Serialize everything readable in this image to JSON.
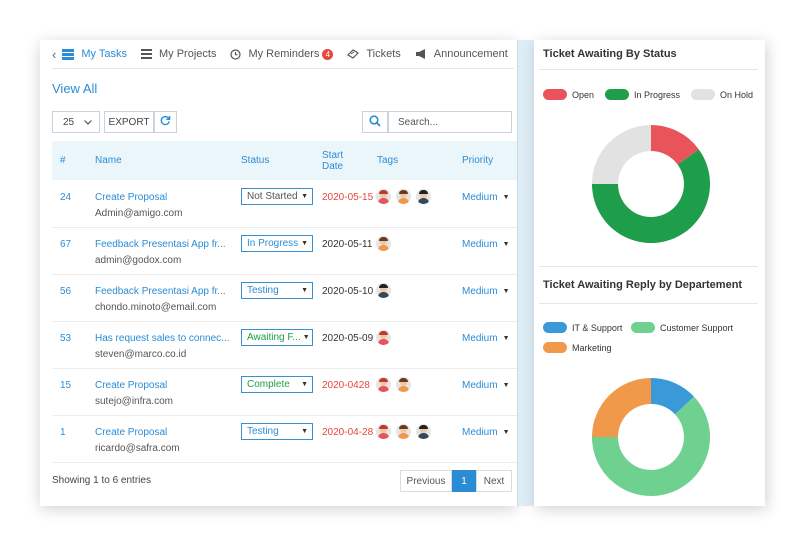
{
  "tabs": [
    {
      "label": "My Tasks",
      "icon": "tasks-icon",
      "active": true
    },
    {
      "label": "My Projects",
      "icon": "projects-icon"
    },
    {
      "label": "My Reminders",
      "icon": "clock-icon",
      "badge": "4"
    },
    {
      "label": "Tickets",
      "icon": "ticket-icon"
    },
    {
      "label": "Announcement",
      "icon": "megaphone-icon"
    }
  ],
  "view_all": "View All",
  "controls": {
    "page_length": "25",
    "export_label": "EXPORT",
    "search_placeholder": "Search..."
  },
  "table": {
    "headers": {
      "num": "#",
      "name": "Name",
      "status": "Status",
      "start_date": "Start Date",
      "tags": "Tags",
      "priority": "Priority"
    },
    "rows": [
      {
        "num": "24",
        "name": "Create Proposal",
        "email": "Admin@amigo.com",
        "status": "Not Started",
        "status_color": "#555555",
        "date": "2020-05-15",
        "date_red": true,
        "tags": [
          "red",
          "orange",
          "dark"
        ],
        "priority": "Medium"
      },
      {
        "num": "67",
        "name": "Feedback Presentasi  App fr...",
        "email": "admin@godox.com",
        "status": "In Progress",
        "status_color": "#2b8cd6",
        "date": "2020-05-11",
        "date_red": false,
        "tags": [
          "orange"
        ],
        "priority": "Medium"
      },
      {
        "num": "56",
        "name": "Feedback Presentasi  App fr...",
        "email": "chondo.minoto@email.com",
        "status": "Testing",
        "status_color": "#2b8cd6",
        "date": "2020-05-10",
        "date_red": false,
        "tags": [
          "dark"
        ],
        "priority": "Medium"
      },
      {
        "num": "53",
        "name": "Has request sales to connec...",
        "email": "steven@marco.co.id",
        "status": "Awaiting F...",
        "status_color": "#1e9e4a",
        "date": "2020-05-09",
        "date_red": false,
        "tags": [
          "red"
        ],
        "priority": "Medium"
      },
      {
        "num": "15",
        "name": "Create Proposal",
        "email": "sutejo@infra.com",
        "status": "Complete",
        "status_color": "#1e9e4a",
        "date": "2020-0428",
        "date_red": true,
        "tags": [
          "red",
          "orange"
        ],
        "priority": "Medium"
      },
      {
        "num": "1",
        "name": "Create Proposal",
        "email": "ricardo@safra.com",
        "status": "Testing",
        "status_color": "#2b8cd6",
        "date": "2020-04-28",
        "date_red": true,
        "tags": [
          "red",
          "orange",
          "dark"
        ],
        "priority": "Medium"
      }
    ]
  },
  "footer": {
    "showing": "Showing 1 to 6 entries",
    "prev": "Previous",
    "page": "1",
    "next": "Next"
  },
  "status_chart": {
    "title": "Ticket Awaiting By Status",
    "legend": [
      {
        "label": "Open",
        "color": "#e8545a",
        "value": 15
      },
      {
        "label": "In Progress",
        "color": "#1e9e4a",
        "value": 60
      },
      {
        "label": "On Hold",
        "color": "#e2e2e2",
        "value": 25
      }
    ]
  },
  "reply_chart": {
    "title": "Ticket Awaiting Reply by  Departement",
    "legend": [
      {
        "label": "IT & Support",
        "color": "#3a9ad9",
        "value": 13
      },
      {
        "label": "Customer Support",
        "color": "#6fd18f",
        "value": 62
      },
      {
        "label": "Marketing",
        "color": "#f0994a",
        "value": 25
      }
    ]
  }
}
